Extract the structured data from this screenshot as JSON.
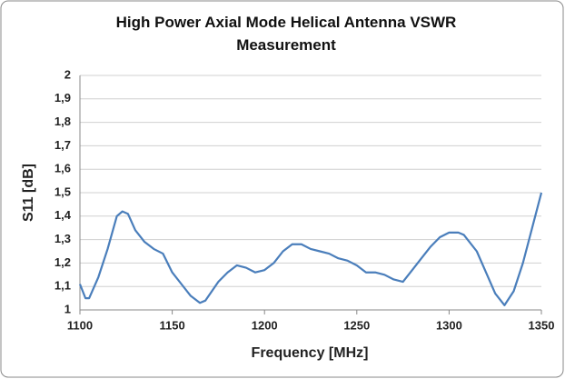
{
  "chart_data": {
    "type": "line",
    "title": "High Power Axial Mode Helical Antenna VSWR Measurement",
    "x_label": "Frequency [MHz]",
    "y_label": "S11 [dB]",
    "x": [
      1100,
      1103,
      1105,
      1110,
      1115,
      1120,
      1123,
      1126,
      1130,
      1135,
      1140,
      1145,
      1150,
      1155,
      1160,
      1165,
      1168,
      1175,
      1180,
      1185,
      1190,
      1195,
      1200,
      1205,
      1210,
      1215,
      1220,
      1225,
      1230,
      1235,
      1240,
      1245,
      1250,
      1255,
      1260,
      1265,
      1270,
      1275,
      1280,
      1285,
      1290,
      1295,
      1300,
      1305,
      1308,
      1315,
      1320,
      1325,
      1330,
      1335,
      1340,
      1345,
      1350
    ],
    "series": [
      {
        "color": "#4a7ebb",
        "values": [
          1.11,
          1.05,
          1.05,
          1.14,
          1.26,
          1.4,
          1.42,
          1.41,
          1.34,
          1.29,
          1.26,
          1.24,
          1.16,
          1.11,
          1.06,
          1.03,
          1.04,
          1.12,
          1.16,
          1.19,
          1.18,
          1.16,
          1.17,
          1.2,
          1.25,
          1.28,
          1.28,
          1.26,
          1.25,
          1.24,
          1.22,
          1.21,
          1.19,
          1.16,
          1.16,
          1.15,
          1.13,
          1.12,
          1.17,
          1.22,
          1.27,
          1.31,
          1.33,
          1.33,
          1.32,
          1.25,
          1.16,
          1.07,
          1.02,
          1.08,
          1.2,
          1.35,
          1.5
        ]
      }
    ],
    "xlim": [
      1100,
      1350
    ],
    "xticks": [
      1100,
      1150,
      1200,
      1250,
      1300,
      1350
    ],
    "ylim": [
      1,
      2
    ],
    "yticks": [
      1,
      {
        "value": 1.1,
        "label": "1,1"
      },
      {
        "value": 1.2,
        "label": "1,2"
      },
      {
        "value": 1.3,
        "label": "1,3"
      },
      {
        "value": 1.4,
        "label": "1,4"
      },
      {
        "value": 1.5,
        "label": "1,5"
      },
      {
        "value": 1.6,
        "label": "1,6"
      },
      {
        "value": 1.7,
        "label": "1,7"
      },
      {
        "value": 1.8,
        "label": "1,8"
      },
      {
        "value": 1.9,
        "label": "1,9"
      },
      2
    ],
    "grid": true
  }
}
